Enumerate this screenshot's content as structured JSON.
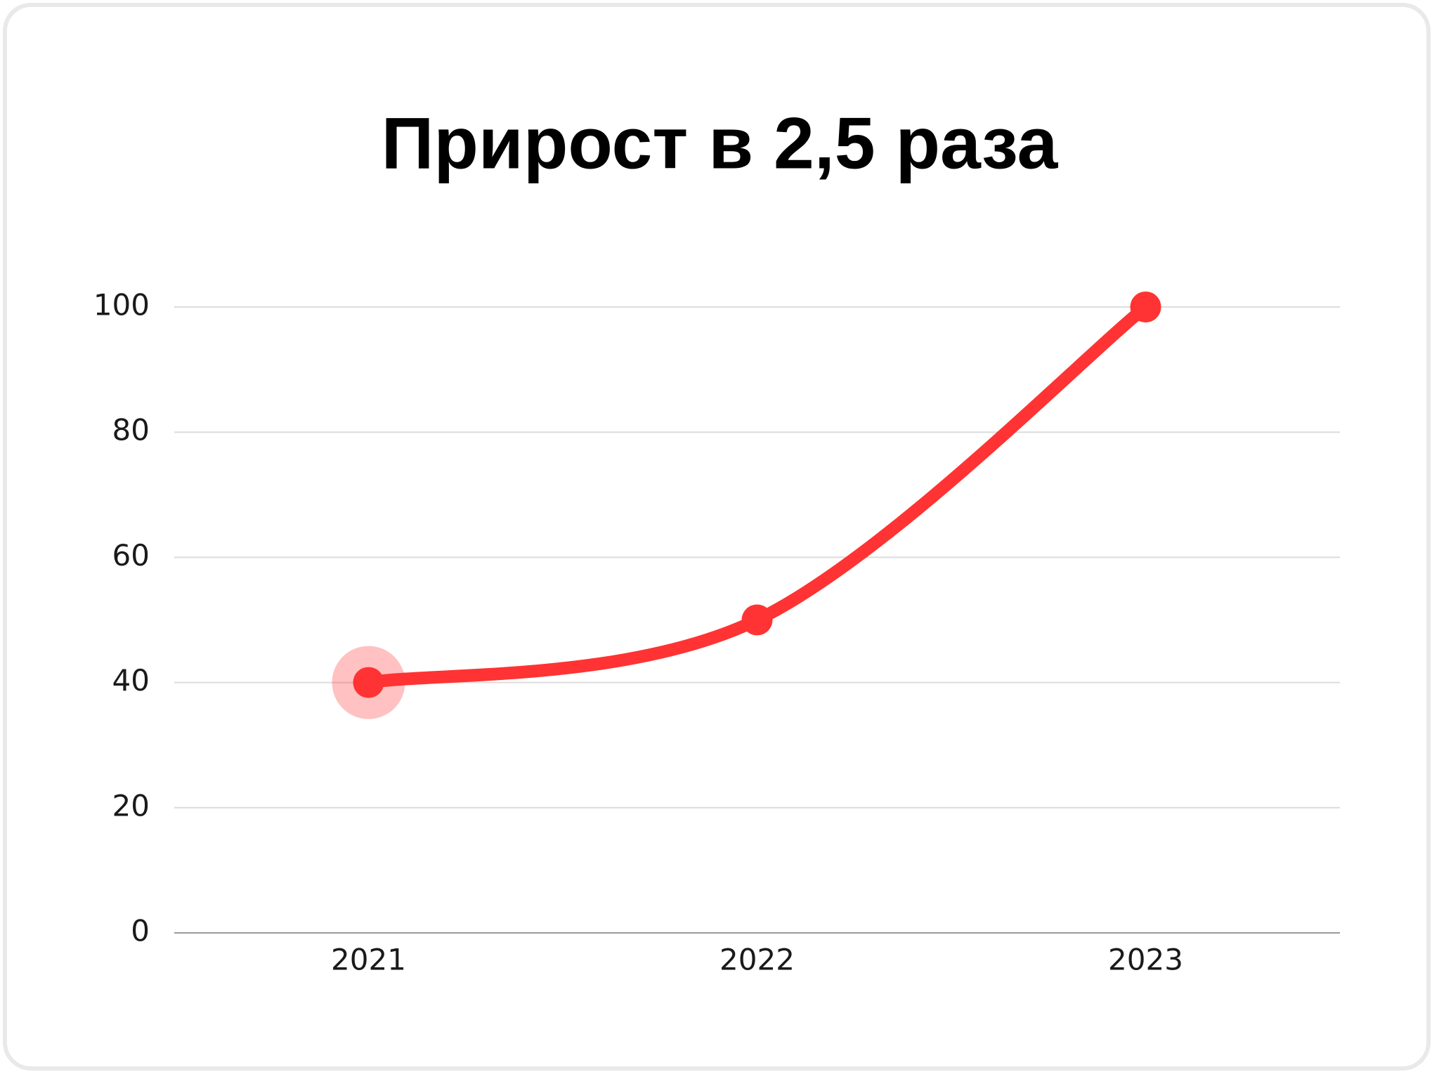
{
  "chart_data": {
    "type": "line",
    "title": "Прирост в 2,5 раза",
    "categories": [
      "2021",
      "2022",
      "2023"
    ],
    "series": [
      {
        "color": "#ff3333",
        "values": [
          40,
          50,
          100
        ]
      }
    ],
    "ylim": [
      0,
      100
    ],
    "yticks": [
      0,
      20,
      40,
      60,
      80,
      100
    ],
    "grid": true
  }
}
